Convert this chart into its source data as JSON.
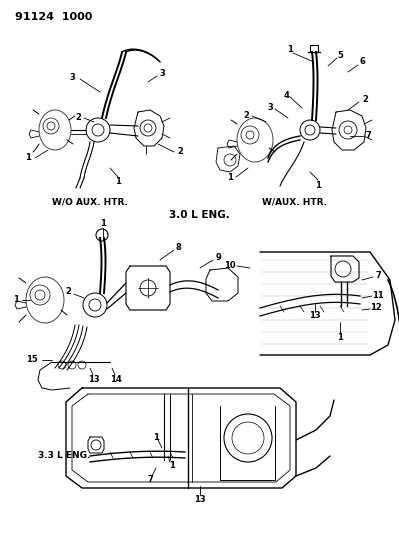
{
  "title_code": "91124  1000",
  "background_color": "#ffffff",
  "text_color": "#000000",
  "label_top_left": "W/O AUX. HTR.",
  "label_top_right": "W/AUX. HTR.",
  "label_mid": "3.0 L ENG.",
  "label_bot": "3.3 L ENG.",
  "fig_width": 3.99,
  "fig_height": 5.33,
  "dpi": 100
}
